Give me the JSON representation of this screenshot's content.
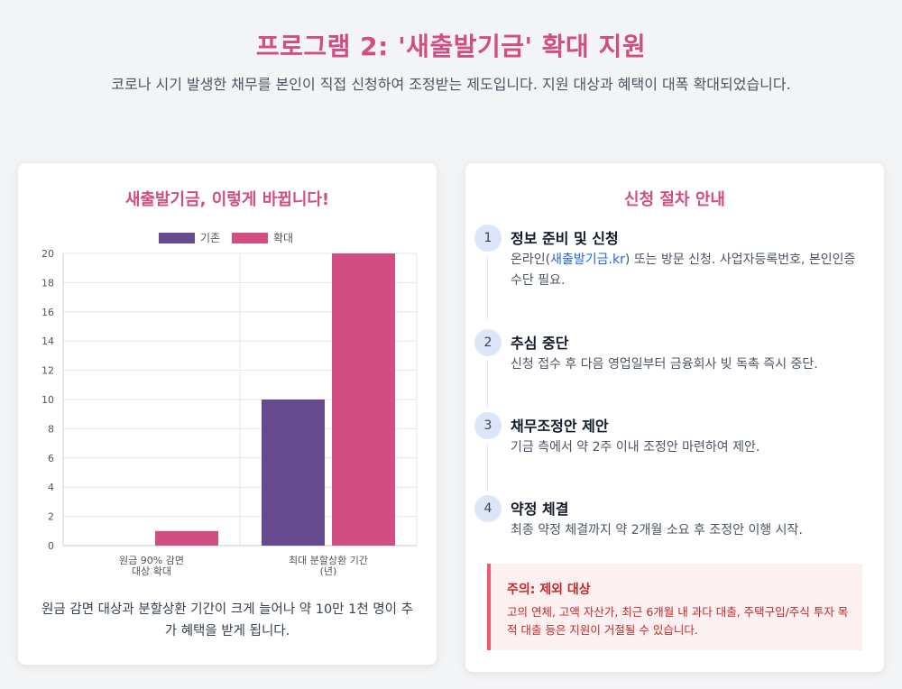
{
  "header": {
    "title": "프로그램 2: '새출발기금' 확대 지원",
    "subtitle": "코로나 시기 발생한 채무를 본인이 직접 신청하여 조정받는 제도입니다. 지원 대상과 혜택이 대폭 확대되었습니다."
  },
  "left_card": {
    "title": "새출발기금, 이렇게 바뀝니다!",
    "note": "원금 감면 대상과 분할상환 기간이 크게 늘어나 약 10만 1천 명이 추가 혜택을 받게 됩니다."
  },
  "chart_data": {
    "type": "bar",
    "categories": [
      [
        "원금 90% 감면",
        "대상 확대"
      ],
      [
        "최대 분할상환 기간",
        "(년)"
      ]
    ],
    "series": [
      {
        "name": "기존",
        "values": [
          0,
          10
        ],
        "color": "#654b8d"
      },
      {
        "name": "확대",
        "values": [
          1,
          20
        ],
        "color": "#d14d82"
      }
    ],
    "ylim": [
      0,
      20
    ],
    "yticks": [
      0,
      2,
      4,
      6,
      8,
      10,
      12,
      14,
      16,
      18,
      20
    ],
    "legend": "top",
    "grid": true
  },
  "right_card": {
    "title": "신청 절차 안내",
    "steps": [
      {
        "num": "1",
        "title": "정보 준비 및 신청",
        "desc_pre": "온라인(",
        "desc_link": "새출발기금.kr",
        "desc_post": ") 또는 방문 신청. 사업자등록번호, 본인인증 수단 필요."
      },
      {
        "num": "2",
        "title": "추심 중단",
        "desc": "신청 접수 후 다음 영업일부터 금융회사 빚 독촉 즉시 중단."
      },
      {
        "num": "3",
        "title": "채무조정안 제안",
        "desc": "기금 측에서 약 2주 이내 조정안 마련하여 제안."
      },
      {
        "num": "4",
        "title": "약정 체결",
        "desc": "최종 약정 체결까지 약 2개월 소요 후 조정안 이행 시작."
      }
    ],
    "warning": {
      "title": "주의: 제외 대상",
      "text": "고의 연체, 고액 자산가, 최근 6개월 내 과다 대출, 주택구입/주식 투자 목적 대출 등은 지원이 거절될 수 있습니다."
    }
  }
}
